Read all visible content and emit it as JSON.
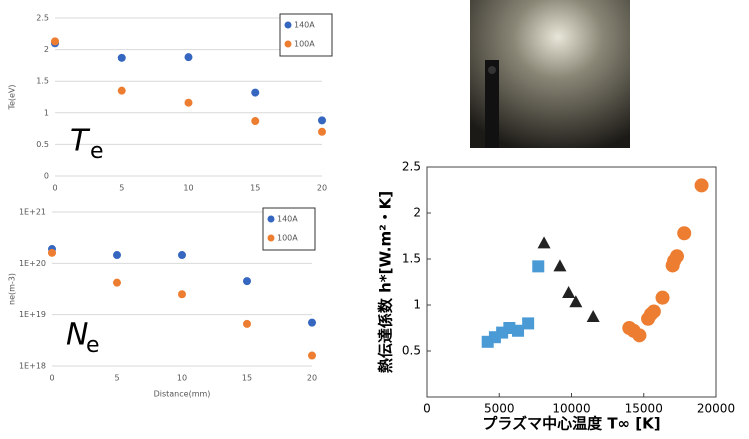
{
  "chart_data": [
    {
      "type": "scatter",
      "ylabel": "Te(eV)",
      "annotation": {
        "symbol": "T",
        "subscript": "e"
      },
      "x": [
        0,
        5,
        10,
        15,
        20
      ],
      "xlim": [
        0,
        20
      ],
      "xticks": [
        0,
        5,
        10,
        15,
        20
      ],
      "ylim": [
        0,
        2.5
      ],
      "yticks": [
        0,
        0.5,
        1,
        1.5,
        2,
        2.5
      ],
      "grid": true,
      "legend": "top-right",
      "series": [
        {
          "name": "140A",
          "color": "#3566c0",
          "marker": "circle",
          "values": [
            2.1,
            1.87,
            1.88,
            1.32,
            0.88
          ]
        },
        {
          "name": "100A",
          "color": "#ed7d31",
          "marker": "circle",
          "values": [
            2.13,
            1.35,
            1.16,
            0.87,
            0.7
          ]
        }
      ]
    },
    {
      "type": "scatter",
      "ylabel": "ne(m-3)",
      "xlabel": "Distance(mm)",
      "annotation": {
        "symbol": "N",
        "subscript": "e"
      },
      "x": [
        0,
        5,
        10,
        15,
        20
      ],
      "xlim": [
        0,
        20
      ],
      "xticks": [
        0,
        5,
        10,
        15,
        20
      ],
      "ylog": true,
      "ylim": [
        1e+18,
        1e+21
      ],
      "yticks": [
        {
          "value": 1e+18,
          "label": "1E+18"
        },
        {
          "value": 1e+19,
          "label": "1E+19"
        },
        {
          "value": 1e+20,
          "label": "1E+20"
        },
        {
          "value": 1e+21,
          "label": "1E+21"
        }
      ],
      "grid": true,
      "legend": "top-right",
      "series": [
        {
          "name": "140A",
          "color": "#3566c0",
          "marker": "circle",
          "values": [
            1.9e+20,
            1.45e+20,
            1.45e+20,
            4.5e+19,
            7e+18
          ]
        },
        {
          "name": "100A",
          "color": "#ed7d31",
          "marker": "circle",
          "values": [
            1.6e+20,
            4.2e+19,
            2.5e+19,
            6.6e+18,
            1.6e+18
          ]
        }
      ]
    },
    {
      "type": "scatter",
      "ylabel": "熱伝達係数 h*[W.m²・K]",
      "xlabel": "プラズマ中心温度 T∞ [K]",
      "xlim": [
        0,
        20000
      ],
      "xticks": [
        0,
        5000,
        10000,
        15000,
        20000
      ],
      "ylim": [
        0,
        2.5
      ],
      "yticks": [
        0.5,
        1,
        1.5,
        2,
        2.5
      ],
      "frame": true,
      "series": [
        {
          "color": "#4a9ad6",
          "marker": "square",
          "x": [
            4200,
            4700,
            5200,
            5700,
            6300,
            7000,
            7700
          ],
          "values": [
            0.6,
            0.65,
            0.7,
            0.75,
            0.72,
            0.8,
            1.42
          ]
        },
        {
          "color": "#222222",
          "marker": "triangle",
          "x": [
            8100,
            9200,
            9800,
            10300,
            11500
          ],
          "values": [
            1.67,
            1.42,
            1.13,
            1.03,
            0.87
          ]
        },
        {
          "color": "#ed7d31",
          "marker": "circle",
          "x": [
            14000,
            14300,
            14700,
            15300,
            15500,
            15700,
            16300,
            17000,
            17100,
            17300,
            17800,
            19000
          ],
          "values": [
            0.75,
            0.72,
            0.67,
            0.85,
            0.9,
            0.93,
            1.08,
            1.43,
            1.48,
            1.53,
            1.78,
            2.3
          ]
        }
      ]
    }
  ]
}
